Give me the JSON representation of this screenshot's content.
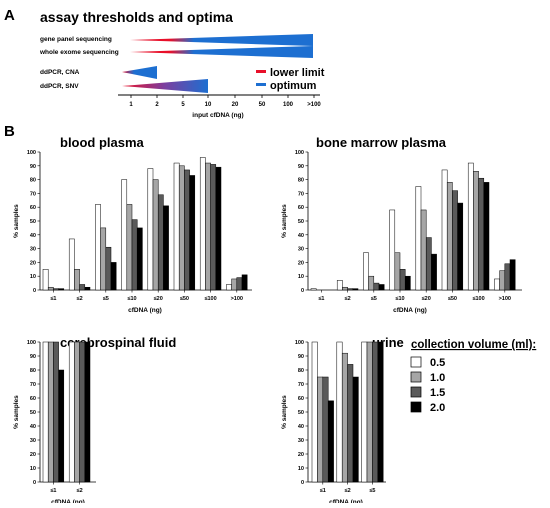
{
  "panel_a_label": "A",
  "panel_b_label": "B",
  "colors": {
    "lower_limit": "#e8102a",
    "optimum": "#1d6fd1",
    "purple_mid": "#7a3fa0",
    "bar_0_5": "#ffffff",
    "bar_1_0": "#a6a6a6",
    "bar_1_5": "#5a5a5a",
    "bar_2_0": "#000000"
  },
  "chart_data": [
    {
      "type": "range",
      "title": "assay thresholds and optima",
      "xlabel": "input cfDNA (ng)",
      "x_ticks": [
        "1",
        "2",
        "5",
        "10",
        "20",
        "50",
        "100",
        ">100"
      ],
      "assays": [
        {
          "name": "gene panel sequencing",
          "lower_limit": 1,
          "optimum": [
            5,
            ">100"
          ],
          "end": ">100"
        },
        {
          "name": "whole exome sequencing",
          "lower_limit": 1,
          "optimum": [
            5,
            ">100"
          ],
          "end": ">100"
        },
        {
          "name": "ddPCR, CNA",
          "lower_limit": 1,
          "optimum": [
            1,
            2
          ],
          "end": 2
        },
        {
          "name": "ddPCR, SNV",
          "lower_limit": 1,
          "optimum": [
            5,
            10
          ],
          "end": 10
        }
      ],
      "legend": [
        "lower limit",
        "optimum"
      ]
    },
    {
      "type": "bar",
      "title": "blood plasma",
      "xlabel": "cfDNA (ng)",
      "ylabel": "% samples",
      "ylim": [
        0,
        100
      ],
      "y_ticks": [
        "0",
        "10",
        "20",
        "30",
        "40",
        "50",
        "60",
        "70",
        "80",
        "90",
        "100"
      ],
      "categories": [
        "≤1",
        "≤2",
        "≤5",
        "≤10",
        "≤20",
        "≤50",
        "≤100",
        ">100"
      ],
      "series": [
        {
          "name": "0.5",
          "values": [
            15,
            37,
            62,
            80,
            88,
            92,
            96,
            4
          ]
        },
        {
          "name": "1.0",
          "values": [
            2,
            15,
            45,
            62,
            80,
            90,
            92,
            8
          ]
        },
        {
          "name": "1.5",
          "values": [
            1,
            4,
            31,
            51,
            69,
            87,
            91,
            9
          ]
        },
        {
          "name": "2.0",
          "values": [
            1,
            2,
            20,
            45,
            61,
            83,
            89,
            11
          ]
        }
      ]
    },
    {
      "type": "bar",
      "title": "bone marrow plasma",
      "xlabel": "cfDNA (ng)",
      "ylabel": "% samples",
      "ylim": [
        0,
        100
      ],
      "y_ticks": [
        "0",
        "10",
        "20",
        "30",
        "40",
        "50",
        "60",
        "70",
        "80",
        "90",
        "100"
      ],
      "categories": [
        "≤1",
        "≤2",
        "≤5",
        "≤10",
        "≤20",
        "≤50",
        "≤100",
        ">100"
      ],
      "series": [
        {
          "name": "0.5",
          "values": [
            1,
            7,
            27,
            58,
            75,
            87,
            92,
            8
          ]
        },
        {
          "name": "1.0",
          "values": [
            0,
            2,
            10,
            27,
            58,
            78,
            86,
            14
          ]
        },
        {
          "name": "1.5",
          "values": [
            0,
            1,
            5,
            15,
            38,
            72,
            81,
            19
          ]
        },
        {
          "name": "2.0",
          "values": [
            0,
            1,
            4,
            10,
            26,
            63,
            78,
            22
          ]
        }
      ]
    },
    {
      "type": "bar",
      "title": "cerebrospinal fluid",
      "xlabel": "cfDNA (ng)",
      "ylabel": "% samples",
      "ylim": [
        0,
        100
      ],
      "y_ticks": [
        "0",
        "10",
        "20",
        "30",
        "40",
        "50",
        "60",
        "70",
        "80",
        "90",
        "100"
      ],
      "categories": [
        "≤1",
        "≤2"
      ],
      "series": [
        {
          "name": "0.5",
          "values": [
            100,
            100
          ]
        },
        {
          "name": "1.0",
          "values": [
            100,
            100
          ]
        },
        {
          "name": "1.5",
          "values": [
            100,
            100
          ]
        },
        {
          "name": "2.0",
          "values": [
            80,
            100
          ]
        }
      ]
    },
    {
      "type": "bar",
      "title": "urine",
      "xlabel": "cfDNA (ng)",
      "ylabel": "% samples",
      "ylim": [
        0,
        100
      ],
      "y_ticks": [
        "0",
        "10",
        "20",
        "30",
        "40",
        "50",
        "60",
        "70",
        "80",
        "90",
        "100"
      ],
      "categories": [
        "≤1",
        "≤2",
        "≤5"
      ],
      "series": [
        {
          "name": "0.5",
          "values": [
            100,
            100,
            100
          ]
        },
        {
          "name": "1.0",
          "values": [
            75,
            92,
            100
          ]
        },
        {
          "name": "1.5",
          "values": [
            75,
            84,
            100
          ]
        },
        {
          "name": "2.0",
          "values": [
            58,
            75,
            100
          ]
        }
      ]
    }
  ],
  "legend_b": {
    "title": "collection volume (ml):",
    "items": [
      "0.5",
      "1.0",
      "1.5",
      "2.0"
    ]
  }
}
